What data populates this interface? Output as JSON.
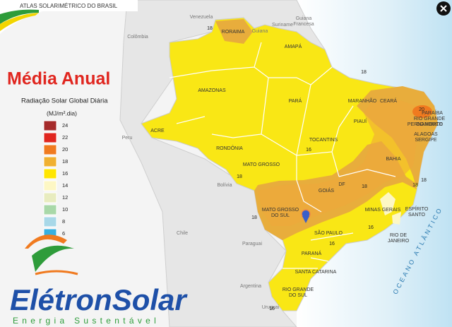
{
  "header": {
    "banner": "ATLAS SOLARIMÉTRICO DO BRASIL"
  },
  "legend": {
    "title": "Média Anual",
    "subtitle": "Radiação Solar Global Diária",
    "unit": "(MJ/m².dia)",
    "items": [
      24,
      22,
      20,
      18,
      16,
      14,
      12,
      10,
      8,
      6
    ]
  },
  "countries": [
    "Venezuela",
    "Guiana",
    "Suriname",
    [
      "Guiana",
      "Francesa"
    ],
    "Colômbia",
    "Peru",
    "Bolívia",
    "Chile",
    "Paraguai",
    "Argentina",
    "Uruguai"
  ],
  "states": [
    "RORAIMA",
    "AMAPÁ",
    "AMAZONAS",
    "PARÁ",
    "MARANHÃO",
    "CEARÁ",
    [
      "RIO GRANDE",
      "DO NORTE"
    ],
    "PARAÍBA",
    "PERNAMBUCO",
    "ALAGOAS",
    "SERGIPE",
    "PIAUÍ",
    "ACRE",
    "RONDÔNIA",
    "TOCANTINS",
    "BAHIA",
    "MATO GROSSO",
    "GOIÁS",
    "DF",
    "MINAS GERAIS",
    [
      "ESPÍRITO",
      "SANTO"
    ],
    [
      "MATO GROSSO",
      "DO SUL"
    ],
    "SÃO PAULO",
    [
      "RIO DE",
      "JANEIRO"
    ],
    "PARANÁ",
    "SANTA CATARINA",
    [
      "RIO GRANDE",
      "DO SUL"
    ]
  ],
  "contours": [
    18,
    18,
    16,
    18,
    18,
    18,
    16,
    20,
    18,
    16,
    18,
    16
  ],
  "ocean": "OCEANO ATLÂNTICO",
  "logo": {
    "brand_1": "Elétron",
    "brand_2": "Solar",
    "tagline": "Energia Sustentável"
  }
}
